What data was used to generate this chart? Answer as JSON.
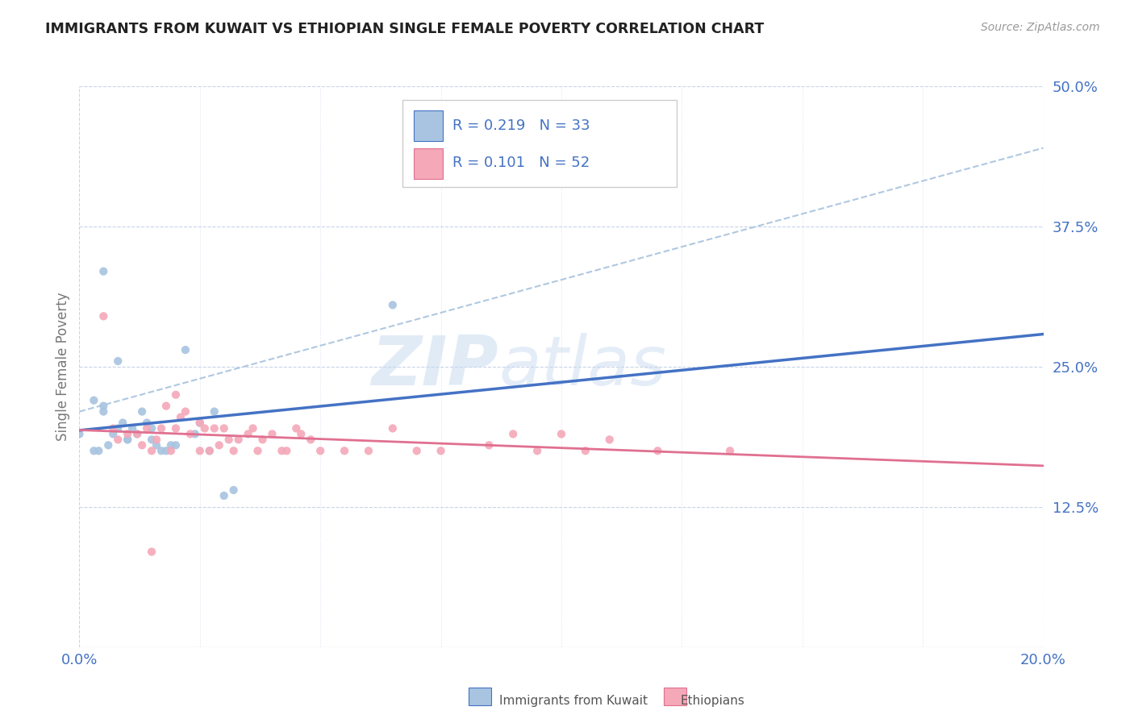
{
  "title": "IMMIGRANTS FROM KUWAIT VS ETHIOPIAN SINGLE FEMALE POVERTY CORRELATION CHART",
  "source": "Source: ZipAtlas.com",
  "ylabel": "Single Female Poverty",
  "x_min": 0.0,
  "x_max": 0.2,
  "y_min": 0.0,
  "y_max": 0.5,
  "y_ticks": [
    0.0,
    0.125,
    0.25,
    0.375,
    0.5
  ],
  "y_tick_labels": [
    "",
    "12.5%",
    "25.0%",
    "37.5%",
    "50.0%"
  ],
  "x_tick_labels": [
    "0.0%",
    "20.0%"
  ],
  "legend_r1": "R = 0.219",
  "legend_n1": "N = 33",
  "legend_r2": "R = 0.101",
  "legend_n2": "N = 52",
  "legend_label1": "Immigrants from Kuwait",
  "legend_label2": "Ethiopians",
  "color_kuwait": "#a8c4e0",
  "color_ethiopian": "#f4a8b8",
  "color_line_kuwait": "#4472c4",
  "color_line_ethiopian": "#e07090",
  "color_trend_dashed": "#b0c8e0",
  "color_text_blue": "#4472c4",
  "background_color": "#ffffff",
  "grid_color": "#c8d4e8",
  "kuwait_x": [
    0.0,
    0.003,
    0.004,
    0.005,
    0.005,
    0.006,
    0.007,
    0.008,
    0.009,
    0.01,
    0.01,
    0.011,
    0.012,
    0.013,
    0.014,
    0.015,
    0.015,
    0.016,
    0.017,
    0.018,
    0.019,
    0.02,
    0.022,
    0.024,
    0.025,
    0.027,
    0.028,
    0.03,
    0.032,
    0.065,
    0.005,
    0.008,
    0.003
  ],
  "kuwait_y": [
    0.19,
    0.22,
    0.175,
    0.21,
    0.215,
    0.18,
    0.19,
    0.195,
    0.2,
    0.185,
    0.185,
    0.195,
    0.19,
    0.21,
    0.2,
    0.195,
    0.185,
    0.18,
    0.175,
    0.175,
    0.18,
    0.18,
    0.265,
    0.19,
    0.2,
    0.175,
    0.21,
    0.135,
    0.14,
    0.305,
    0.335,
    0.255,
    0.175
  ],
  "ethiopian_x": [
    0.005,
    0.007,
    0.008,
    0.01,
    0.012,
    0.013,
    0.014,
    0.015,
    0.016,
    0.017,
    0.018,
    0.019,
    0.02,
    0.021,
    0.022,
    0.023,
    0.025,
    0.025,
    0.026,
    0.027,
    0.028,
    0.029,
    0.03,
    0.031,
    0.032,
    0.033,
    0.035,
    0.036,
    0.037,
    0.038,
    0.04,
    0.042,
    0.043,
    0.045,
    0.046,
    0.048,
    0.05,
    0.055,
    0.06,
    0.065,
    0.07,
    0.075,
    0.085,
    0.09,
    0.095,
    0.1,
    0.105,
    0.11,
    0.12,
    0.135,
    0.015,
    0.02
  ],
  "ethiopian_y": [
    0.295,
    0.195,
    0.185,
    0.19,
    0.19,
    0.18,
    0.195,
    0.175,
    0.185,
    0.195,
    0.215,
    0.175,
    0.195,
    0.205,
    0.21,
    0.19,
    0.2,
    0.175,
    0.195,
    0.175,
    0.195,
    0.18,
    0.195,
    0.185,
    0.175,
    0.185,
    0.19,
    0.195,
    0.175,
    0.185,
    0.19,
    0.175,
    0.175,
    0.195,
    0.19,
    0.185,
    0.175,
    0.175,
    0.175,
    0.195,
    0.175,
    0.175,
    0.18,
    0.19,
    0.175,
    0.19,
    0.175,
    0.185,
    0.175,
    0.175,
    0.085,
    0.225
  ],
  "watermark_zip": "ZIP",
  "watermark_atlas": "atlas"
}
